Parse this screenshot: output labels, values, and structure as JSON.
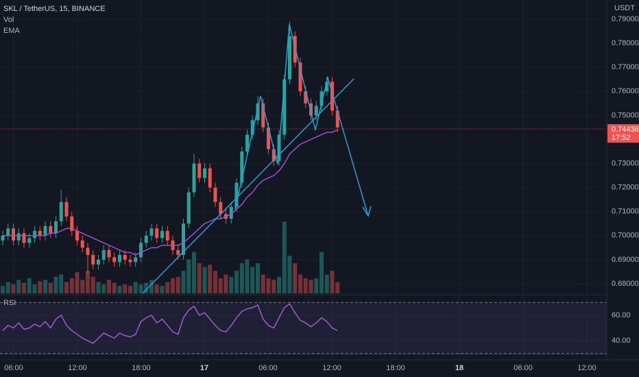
{
  "header": {
    "symbol": "SKL / TetherUS, 15, BINANCE",
    "vol": "Vol",
    "ema": "EMA",
    "currency": "USDT",
    "rsi": "RSI"
  },
  "time_labels": [
    "06:00",
    "12:00",
    "18:00",
    "17",
    "06:00",
    "12:00",
    "18:00",
    "18",
    "06:00",
    "12:00"
  ],
  "chart_data": {
    "type": "candlestick",
    "up_color": "#26a69a",
    "down_color": "#ef5350",
    "ema_color": "#a14fd6",
    "rsi_color": "#a45bd0",
    "grid": true,
    "ylim": [
      0.676,
      0.798
    ],
    "yticks": [
      {
        "value": 0.79,
        "label": "0.79000"
      },
      {
        "value": 0.78,
        "label": "0.78000"
      },
      {
        "value": 0.77,
        "label": "0.77000"
      },
      {
        "value": 0.76,
        "label": "0.76000"
      },
      {
        "value": 0.75,
        "label": "0.75000"
      },
      {
        "value": 0.73,
        "label": "0.73000"
      },
      {
        "value": 0.72,
        "label": "0.72000"
      },
      {
        "value": 0.71,
        "label": "0.71000"
      },
      {
        "value": 0.7,
        "label": "0.70000"
      },
      {
        "value": 0.69,
        "label": "0.69000"
      },
      {
        "value": 0.68,
        "label": "0.68000"
      }
    ],
    "last_price": 0.74436,
    "countdown": "17:52",
    "open": [
      0.698,
      0.7,
      0.703,
      0.698,
      0.701,
      0.697,
      0.699,
      0.702,
      0.7,
      0.704,
      0.701,
      0.706,
      0.714,
      0.708,
      0.702,
      0.698,
      0.695,
      0.692,
      0.688,
      0.69,
      0.694,
      0.691,
      0.689,
      0.692,
      0.69,
      0.689,
      0.691,
      0.697,
      0.7,
      0.703,
      0.699,
      0.702,
      0.698,
      0.694,
      0.692,
      0.705,
      0.718,
      0.73,
      0.724,
      0.728,
      0.72,
      0.714,
      0.709,
      0.707,
      0.712,
      0.722,
      0.735,
      0.742,
      0.748,
      0.755,
      0.745,
      0.736,
      0.731,
      0.742,
      0.765,
      0.783,
      0.772,
      0.76,
      0.755,
      0.75,
      0.754,
      0.76,
      0.764,
      0.752
    ],
    "high": [
      0.702,
      0.705,
      0.705,
      0.703,
      0.703,
      0.701,
      0.704,
      0.704,
      0.706,
      0.706,
      0.708,
      0.719,
      0.716,
      0.71,
      0.704,
      0.7,
      0.697,
      0.694,
      0.692,
      0.696,
      0.696,
      0.693,
      0.694,
      0.694,
      0.692,
      0.693,
      0.699,
      0.702,
      0.705,
      0.705,
      0.704,
      0.704,
      0.7,
      0.696,
      0.707,
      0.72,
      0.734,
      0.732,
      0.73,
      0.73,
      0.722,
      0.716,
      0.711,
      0.714,
      0.724,
      0.737,
      0.744,
      0.75,
      0.758,
      0.757,
      0.747,
      0.738,
      0.744,
      0.767,
      0.789,
      0.785,
      0.774,
      0.762,
      0.757,
      0.756,
      0.762,
      0.766,
      0.766,
      0.754
    ],
    "low": [
      0.696,
      0.698,
      0.696,
      0.696,
      0.695,
      0.695,
      0.697,
      0.698,
      0.698,
      0.699,
      0.699,
      0.704,
      0.706,
      0.7,
      0.696,
      0.693,
      0.684,
      0.686,
      0.686,
      0.688,
      0.689,
      0.687,
      0.687,
      0.688,
      0.687,
      0.687,
      0.689,
      0.695,
      0.698,
      0.697,
      0.697,
      0.696,
      0.692,
      0.69,
      0.69,
      0.703,
      0.716,
      0.722,
      0.722,
      0.718,
      0.712,
      0.707,
      0.705,
      0.705,
      0.71,
      0.72,
      0.733,
      0.74,
      0.746,
      0.743,
      0.734,
      0.729,
      0.729,
      0.74,
      0.763,
      0.77,
      0.758,
      0.753,
      0.748,
      0.748,
      0.752,
      0.758,
      0.75,
      0.743
    ],
    "close": [
      0.7,
      0.703,
      0.698,
      0.701,
      0.697,
      0.699,
      0.702,
      0.7,
      0.704,
      0.701,
      0.706,
      0.714,
      0.708,
      0.702,
      0.698,
      0.695,
      0.692,
      0.688,
      0.69,
      0.694,
      0.691,
      0.689,
      0.692,
      0.69,
      0.689,
      0.691,
      0.697,
      0.7,
      0.703,
      0.699,
      0.702,
      0.698,
      0.694,
      0.692,
      0.705,
      0.718,
      0.73,
      0.724,
      0.728,
      0.72,
      0.714,
      0.709,
      0.707,
      0.712,
      0.722,
      0.735,
      0.742,
      0.748,
      0.755,
      0.745,
      0.736,
      0.731,
      0.742,
      0.765,
      0.783,
      0.772,
      0.76,
      0.755,
      0.75,
      0.754,
      0.76,
      0.764,
      0.752,
      0.745
    ],
    "ema": [
      0.7,
      0.7,
      0.7,
      0.7,
      0.7,
      0.7,
      0.7,
      0.7,
      0.7,
      0.701,
      0.701,
      0.702,
      0.703,
      0.703,
      0.702,
      0.701,
      0.7,
      0.699,
      0.698,
      0.697,
      0.696,
      0.695,
      0.694,
      0.693,
      0.693,
      0.692,
      0.693,
      0.694,
      0.695,
      0.695,
      0.696,
      0.696,
      0.696,
      0.696,
      0.697,
      0.699,
      0.701,
      0.703,
      0.705,
      0.706,
      0.707,
      0.707,
      0.708,
      0.709,
      0.711,
      0.713,
      0.716,
      0.718,
      0.721,
      0.723,
      0.724,
      0.725,
      0.727,
      0.73,
      0.734,
      0.736,
      0.738,
      0.739,
      0.74,
      0.741,
      0.742,
      0.743,
      0.743,
      0.744
    ],
    "volume": [
      10,
      15,
      12,
      18,
      14,
      20,
      12,
      16,
      18,
      14,
      22,
      25,
      15,
      20,
      28,
      18,
      30,
      22,
      15,
      12,
      18,
      14,
      10,
      12,
      10,
      15,
      12,
      14,
      18,
      12,
      10,
      15,
      20,
      22,
      30,
      45,
      55,
      40,
      35,
      38,
      30,
      20,
      25,
      22,
      30,
      40,
      45,
      35,
      40,
      25,
      20,
      18,
      22,
      95,
      50,
      40,
      25,
      20,
      18,
      20,
      55,
      25,
      30,
      15
    ],
    "rsi_ylim": [
      25,
      75
    ],
    "rsi_yticks": [
      {
        "value": 60,
        "label": "60.00"
      },
      {
        "value": 40,
        "label": "40.00"
      }
    ],
    "rsi_bands": [
      70,
      30
    ],
    "rsi": [
      48,
      52,
      50,
      54,
      49,
      50,
      53,
      51,
      55,
      50,
      57,
      60,
      52,
      48,
      45,
      42,
      40,
      38,
      42,
      46,
      44,
      42,
      46,
      44,
      43,
      45,
      55,
      58,
      60,
      54,
      57,
      52,
      47,
      45,
      58,
      64,
      67,
      60,
      62,
      57,
      52,
      48,
      47,
      52,
      58,
      63,
      65,
      66,
      68,
      57,
      52,
      50,
      58,
      66,
      69,
      62,
      56,
      54,
      51,
      54,
      58,
      55,
      50,
      48
    ]
  }
}
